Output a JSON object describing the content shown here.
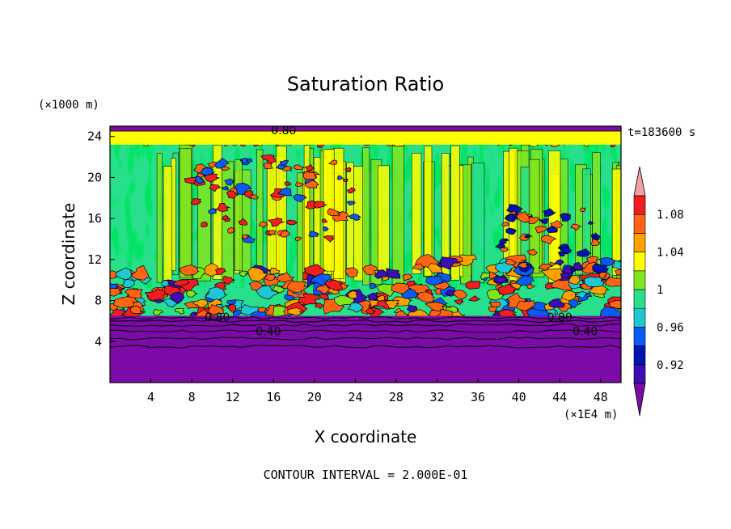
{
  "chart_data": {
    "type": "heatmap",
    "title": "Saturation Ratio",
    "xlabel": "X coordinate",
    "ylabel": "Z coordinate",
    "x_units": "(×1E4 m)",
    "y_units": "(×1000 m)",
    "time_label": "t=183600 s",
    "footer": "CONTOUR INTERVAL = 2.000E-01",
    "xlim": [
      0,
      50
    ],
    "ylim": [
      0,
      25
    ],
    "x_ticks": [
      4,
      8,
      12,
      16,
      20,
      24,
      28,
      32,
      36,
      40,
      44,
      48
    ],
    "y_ticks": [
      4,
      8,
      12,
      16,
      20,
      24
    ],
    "colorbar": {
      "labels": [
        "1.08",
        "1.04",
        "1",
        "0.96",
        "0.92"
      ],
      "levels": [
        0.9,
        0.92,
        0.94,
        0.96,
        0.98,
        1.0,
        1.02,
        1.04,
        1.06,
        1.08,
        1.1
      ],
      "colors": [
        "#7b0aa6",
        "#3b0fb3",
        "#0014b4",
        "#0a5af5",
        "#1ec8d2",
        "#28e08c",
        "#7fe61e",
        "#ffff00",
        "#ffa000",
        "#ff6414",
        "#f01e1e",
        "#f0a0a0"
      ],
      "label_levels": [
        1.08,
        1.04,
        1.0,
        0.96,
        0.92
      ]
    },
    "contour_labels": [
      {
        "text": "0.80",
        "x": 10.5,
        "y": 6.4
      },
      {
        "text": "0.40",
        "x": 15.5,
        "y": 5.0
      },
      {
        "text": "0.80",
        "x": 44.0,
        "y": 6.4
      },
      {
        "text": "0.40",
        "x": 46.5,
        "y": 5.0
      },
      {
        "text": "0.80",
        "x": 17.0,
        "y": 24.6
      }
    ],
    "regions": {
      "surface_layer_top_km": 6.5,
      "surface_value": 0.4,
      "mid_layer": [
        6.5,
        11.0
      ],
      "mid_layer_value": 1.06,
      "upper_background_value": 1.0,
      "top_band": [
        23.2,
        24.6
      ],
      "top_band_value": 1.02
    }
  }
}
